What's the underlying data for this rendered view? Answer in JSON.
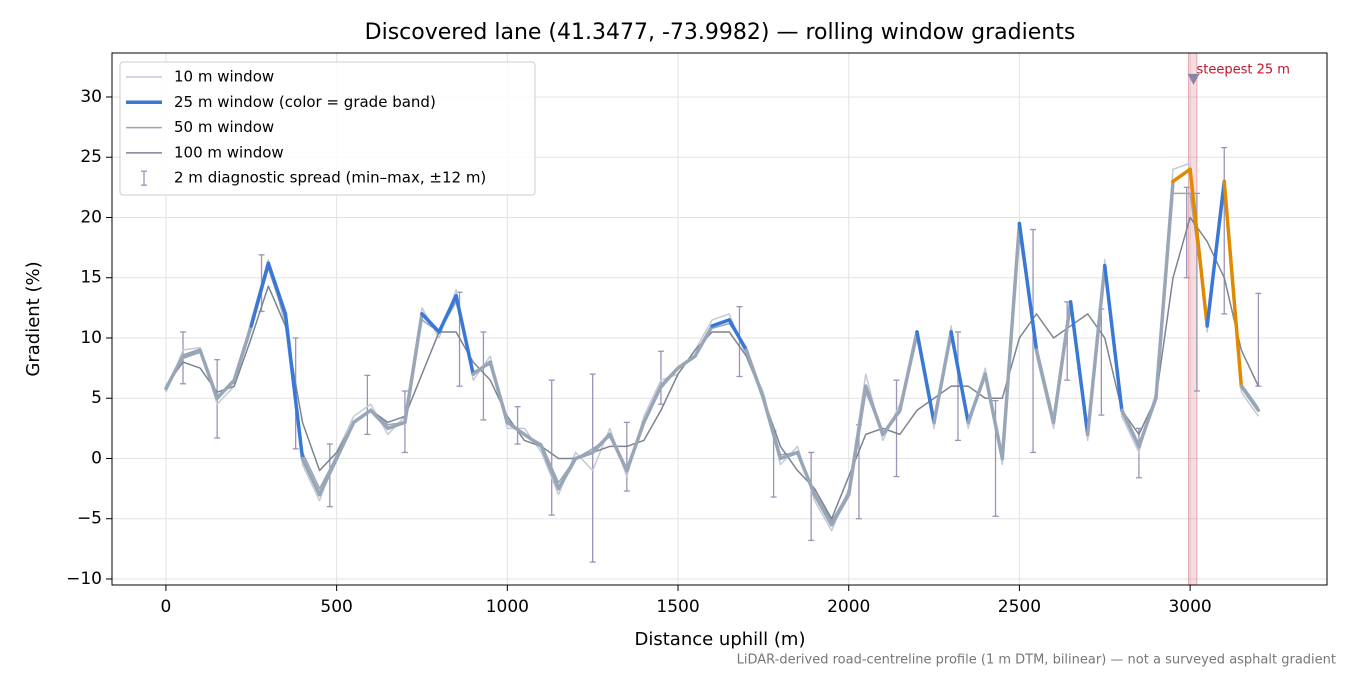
{
  "chart_data": {
    "type": "line",
    "title": "Discovered lane (41.3477, -73.9982) — rolling window gradients",
    "xlabel": "Distance uphill (m)",
    "ylabel": "Gradient (%)",
    "footnote": "LiDAR-derived road-centreline profile (1 m DTM, bilinear) — not a surveyed asphalt gradient",
    "xlim": [
      -158,
      3401
    ],
    "ylim": [
      -10.5,
      33.65
    ],
    "xticks": [
      0,
      500,
      1000,
      1500,
      2000,
      2500,
      3000
    ],
    "yticks": [
      {
        "value": -10,
        "label": "−10"
      },
      {
        "value": -5,
        "label": "−5"
      },
      0,
      5,
      10,
      15,
      20,
      25,
      30
    ],
    "grid": true,
    "legend": "upper left",
    "x": [
      0,
      50,
      100,
      150,
      200,
      250,
      300,
      350,
      400,
      450,
      500,
      550,
      600,
      650,
      700,
      750,
      800,
      850,
      900,
      950,
      1000,
      1050,
      1100,
      1150,
      1200,
      1250,
      1300,
      1350,
      1400,
      1450,
      1500,
      1550,
      1600,
      1650,
      1700,
      1750,
      1800,
      1850,
      1900,
      1950,
      2000,
      2050,
      2100,
      2150,
      2200,
      2250,
      2300,
      2350,
      2400,
      2450,
      2500,
      2550,
      2600,
      2650,
      2700,
      2750,
      2800,
      2850,
      2900,
      2950,
      3000,
      3050,
      3100,
      3150,
      3200
    ],
    "series": [
      {
        "name": "10 m window",
        "color": "#c3cad6",
        "width": 1.5,
        "values": [
          5.5,
          9,
          9.2,
          4.5,
          6,
          11.5,
          16.5,
          11,
          -0.5,
          -3.5,
          0.5,
          3.5,
          4.5,
          2,
          3.5,
          12.5,
          10,
          14,
          6.5,
          8.5,
          2.5,
          2.5,
          0.5,
          -3,
          0.5,
          -1,
          2.5,
          -1.5,
          3.5,
          6.5,
          7,
          9,
          11.5,
          12,
          8.5,
          5.5,
          -0.5,
          1,
          -3.5,
          -6,
          -2.5,
          7,
          1.5,
          4.5,
          10,
          2.5,
          11,
          2.5,
          7.5,
          -0.5,
          19,
          8.5,
          2.5,
          12.5,
          1.5,
          16.5,
          3.5,
          0.5,
          5.5,
          24,
          24.5,
          10.5,
          22.5,
          5.5,
          3.5
        ]
      },
      {
        "name": "50 m window",
        "color": "#9aa6b6",
        "width": 1.5,
        "values": [
          6,
          8.3,
          8.8,
          5.2,
          6.3,
          10.8,
          15.8,
          11.5,
          0.5,
          -2.5,
          0.2,
          3,
          4,
          2.8,
          3,
          11.5,
          10.5,
          13,
          7.2,
          7.8,
          3.2,
          2,
          1.2,
          -2,
          0,
          0.8,
          1.8,
          -0.8,
          3,
          5.8,
          7.5,
          8.4,
          10.8,
          11.2,
          9.2,
          5,
          0.3,
          0.5,
          -2.8,
          -5.2,
          -2.8,
          5.5,
          2.2,
          3.8,
          10,
          3.3,
          10,
          3.2,
          6.8,
          0.3,
          18.5,
          9.2,
          3.3,
          12.5,
          2.5,
          15.5,
          4.2,
          1.2,
          5,
          22,
          22,
          11.5,
          22,
          6.2,
          4.2
        ]
      },
      {
        "name": "100 m window",
        "color": "#7c8391",
        "width": 1.5,
        "values": [
          6,
          8,
          7.5,
          5.5,
          6,
          10,
          14.3,
          11,
          3,
          -1,
          0.5,
          3,
          4,
          3,
          3.5,
          7,
          10.5,
          10.5,
          8,
          6.5,
          3.5,
          1.5,
          1,
          0,
          0,
          0.5,
          1,
          1,
          1.5,
          4,
          7,
          9,
          10.5,
          10.5,
          8.5,
          5,
          1,
          -1,
          -2.5,
          -5,
          -1.5,
          2,
          2.5,
          2,
          4,
          5,
          6,
          6,
          5,
          5,
          10,
          12,
          10,
          11,
          12,
          10,
          4,
          2,
          5,
          15,
          20,
          18,
          15,
          9,
          6
        ]
      },
      {
        "name": "25 m window (color = grade band)",
        "color": "#3a78d8",
        "width": 3.5,
        "values": [
          5.8,
          8.5,
          9,
          5,
          6.5,
          11,
          16.2,
          12,
          0,
          -3,
          0,
          3,
          4,
          2.5,
          3,
          12,
          10.5,
          13.5,
          7,
          8,
          3,
          2,
          1,
          -2.5,
          0,
          0.5,
          2,
          -1,
          3,
          6,
          7.5,
          8.5,
          11,
          11.5,
          9,
          5,
          0,
          0.5,
          -3,
          -5.5,
          -3,
          6,
          2,
          4,
          10.5,
          3,
          10.5,
          3,
          7,
          0,
          19.5,
          9,
          3,
          13,
          2,
          16,
          4,
          1,
          5,
          23,
          24,
          11,
          23,
          6,
          4
        ],
        "point_colors": [
          "#98a6b8",
          "#98a6b8",
          "#98a6b8",
          "#98a6b8",
          "#98a6b8",
          "#3a78d8",
          "#3a78d8",
          "#3a78d8",
          "#98a6b8",
          "#98a6b8",
          "#98a6b8",
          "#98a6b8",
          "#98a6b8",
          "#98a6b8",
          "#98a6b8",
          "#3a78d8",
          "#3a78d8",
          "#3a78d8",
          "#98a6b8",
          "#98a6b8",
          "#98a6b8",
          "#98a6b8",
          "#98a6b8",
          "#98a6b8",
          "#98a6b8",
          "#98a6b8",
          "#98a6b8",
          "#98a6b8",
          "#98a6b8",
          "#98a6b8",
          "#98a6b8",
          "#98a6b8",
          "#3a78d8",
          "#3a78d8",
          "#98a6b8",
          "#98a6b8",
          "#98a6b8",
          "#98a6b8",
          "#98a6b8",
          "#98a6b8",
          "#98a6b8",
          "#98a6b8",
          "#98a6b8",
          "#98a6b8",
          "#3a78d8",
          "#98a6b8",
          "#3a78d8",
          "#98a6b8",
          "#98a6b8",
          "#98a6b8",
          "#3a78d8",
          "#98a6b8",
          "#98a6b8",
          "#3a78d8",
          "#98a6b8",
          "#3a78d8",
          "#98a6b8",
          "#98a6b8",
          "#98a6b8",
          "#e08a00",
          "#e08a00",
          "#3a78d8",
          "#e08a00",
          "#98a6b8",
          "#98a6b8"
        ]
      }
    ],
    "legend_order": [
      0,
      3,
      1,
      2
    ],
    "error_bars": {
      "name": "2 m diagnostic spread (min–max, ±12 m)",
      "color": "#9b94b8",
      "x": [
        50,
        150,
        280,
        380,
        480,
        590,
        700,
        860,
        930,
        1030,
        1130,
        1250,
        1350,
        1450,
        1680,
        1780,
        1890,
        2030,
        2140,
        2320,
        2430,
        2540,
        2640,
        2740,
        2850,
        2990,
        3020,
        3100,
        3200
      ],
      "low": [
        6.2,
        1.7,
        12.2,
        0.8,
        -4,
        2,
        0.5,
        6,
        3.2,
        1.2,
        -4.7,
        -8.6,
        -2.7,
        4.5,
        6.8,
        -3.2,
        -6.8,
        -5,
        -1.5,
        1.5,
        -4.8,
        0.5,
        6.5,
        3.6,
        -1.6,
        15,
        5.6,
        12,
        6
      ],
      "high": [
        10.5,
        8.2,
        16.9,
        10,
        1.2,
        6.9,
        5.6,
        13.8,
        10.5,
        4.3,
        6.5,
        7,
        3,
        8.9,
        12.6,
        2.3,
        0.5,
        2.8,
        6.5,
        10.5,
        4.8,
        19,
        13,
        12.4,
        2.5,
        22.5,
        22,
        25.8,
        13.7
      ]
    },
    "highlight": {
      "label": "steepest 25 m",
      "x": 3010,
      "y": 31.5,
      "span": [
        2995,
        3020
      ],
      "color": "#c0142a"
    }
  }
}
